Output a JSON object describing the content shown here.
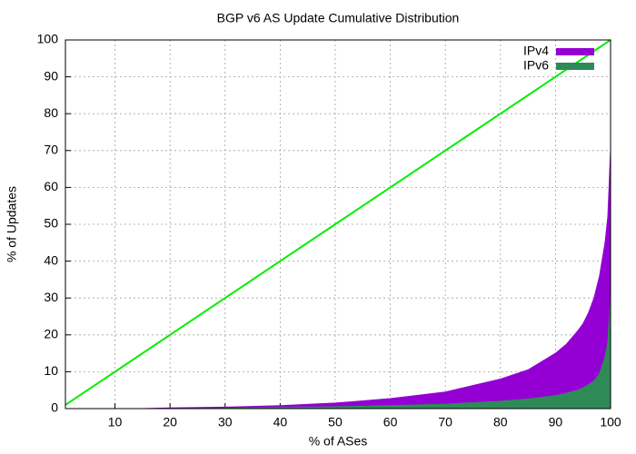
{
  "chart_data": {
    "type": "area",
    "title": "BGP v6 AS Update Cumulative Distribution",
    "x_label": "% of ASes",
    "y_label": "% of Updates",
    "x": [
      1,
      10,
      15,
      20,
      30,
      40,
      50,
      60,
      70,
      80,
      85,
      90,
      92,
      94,
      95,
      96,
      97,
      98,
      99,
      99.5,
      100
    ],
    "series": [
      {
        "name": "IPv4",
        "color": "#9400d3",
        "values": [
          0,
          0,
          0,
          0.2,
          0.4,
          0.8,
          1.5,
          2.7,
          4.5,
          8,
          10.5,
          15,
          17.5,
          21,
          23,
          26,
          30,
          36,
          45,
          52,
          70
        ]
      },
      {
        "name": "IPv6",
        "color": "#2e8b57",
        "values": [
          0,
          0,
          0,
          0,
          0.1,
          0.3,
          0.5,
          0.8,
          1.2,
          2,
          2.6,
          3.5,
          4.2,
          5,
          5.6,
          6.5,
          7.5,
          9.5,
          14,
          18,
          30
        ]
      },
      {
        "color": "#00ee00",
        "style": "line",
        "values": [
          1,
          10,
          15,
          20,
          30,
          40,
          50,
          60,
          70,
          80,
          85,
          90,
          92,
          94,
          95,
          96,
          97,
          98,
          99,
          99.5,
          100
        ]
      }
    ],
    "xlim": [
      1,
      100
    ],
    "xticks": [
      10,
      20,
      30,
      40,
      50,
      60,
      70,
      80,
      90,
      100
    ],
    "ylim": [
      0,
      100
    ],
    "yticks": [
      0,
      10,
      20,
      30,
      40,
      50,
      60,
      70,
      80,
      90,
      100
    ],
    "grid": true,
    "legend": "top-right"
  }
}
